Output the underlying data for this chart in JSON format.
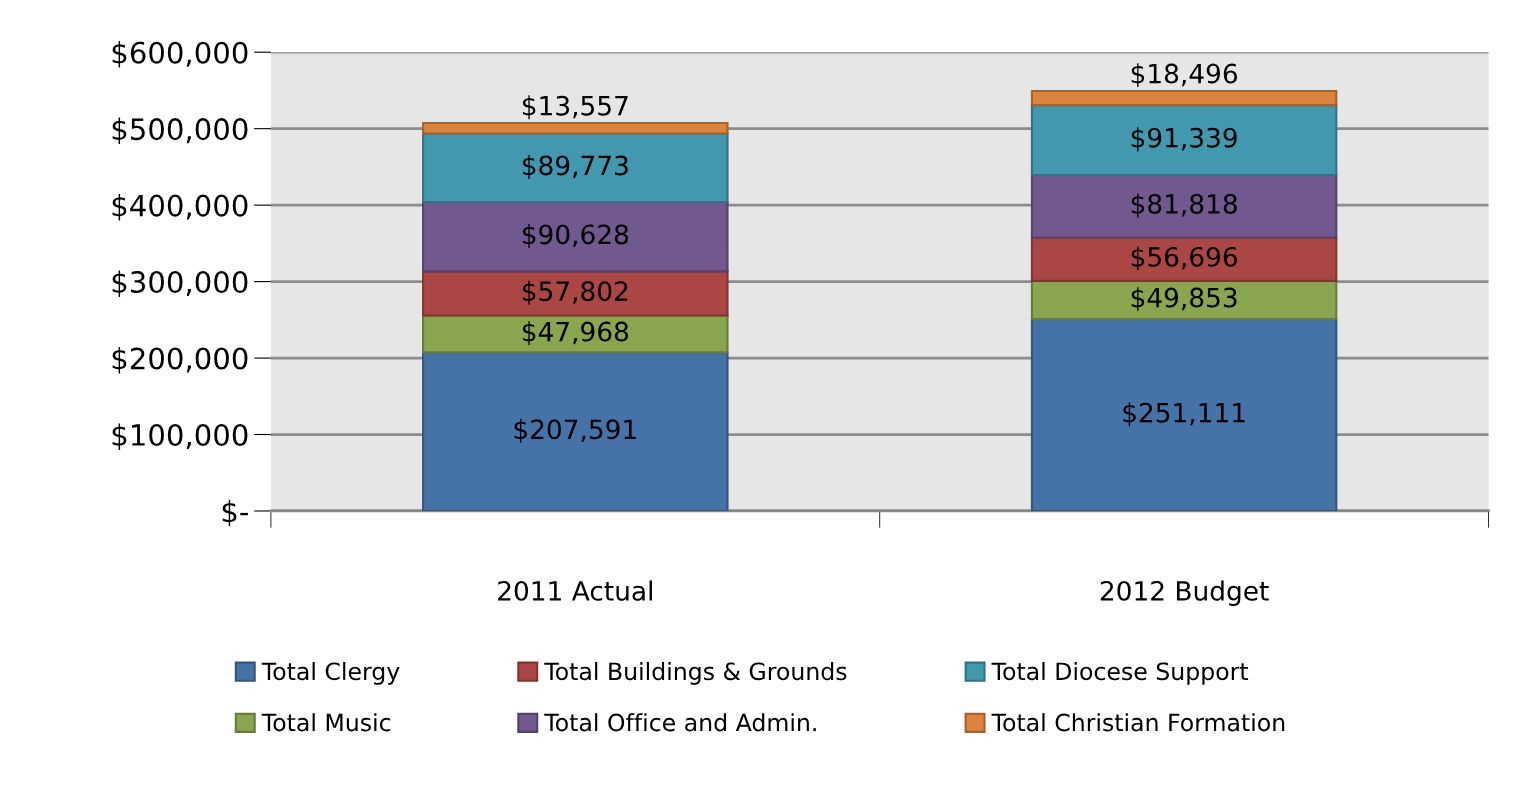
{
  "chart_data": {
    "type": "bar",
    "stacked": true,
    "categories": [
      "2011 Actual",
      "2012 Budget"
    ],
    "series": [
      {
        "name": "Total Clergy",
        "color": "#4572a7",
        "values": [
          207591,
          251111
        ],
        "value_labels": [
          "$207,591",
          "$251,111"
        ]
      },
      {
        "name": "Total Music",
        "color": "#89a54e",
        "values": [
          47968,
          49853
        ],
        "value_labels": [
          "$47,968",
          "$49,853"
        ]
      },
      {
        "name": "Total Buildings & Grounds",
        "color": "#aa4643",
        "values": [
          57802,
          56696
        ],
        "value_labels": [
          "$57,802",
          "$56,696"
        ]
      },
      {
        "name": "Total Office and Admin.",
        "color": "#71588f",
        "values": [
          90628,
          81818
        ],
        "value_labels": [
          "$90,628",
          "$81,818"
        ]
      },
      {
        "name": "Total Diocese Support",
        "color": "#4198af",
        "values": [
          89773,
          91339
        ],
        "value_labels": [
          "$89,773",
          "$91,339"
        ]
      },
      {
        "name": "Total Christian Formation",
        "color": "#db843d",
        "values": [
          13557,
          18496
        ],
        "value_labels": [
          "$13,557",
          "$18,496"
        ]
      }
    ],
    "ylim": [
      0,
      600000
    ],
    "yticks": [
      {
        "value": 0,
        "label": "$-"
      },
      {
        "value": 100000,
        "label": "$100,000"
      },
      {
        "value": 200000,
        "label": "$200,000"
      },
      {
        "value": 300000,
        "label": "$300,000"
      },
      {
        "value": 400000,
        "label": "$400,000"
      },
      {
        "value": 500000,
        "label": "$500,000"
      },
      {
        "value": 600000,
        "label": "$600,000"
      }
    ],
    "grid": "y",
    "legend": "bottom"
  }
}
